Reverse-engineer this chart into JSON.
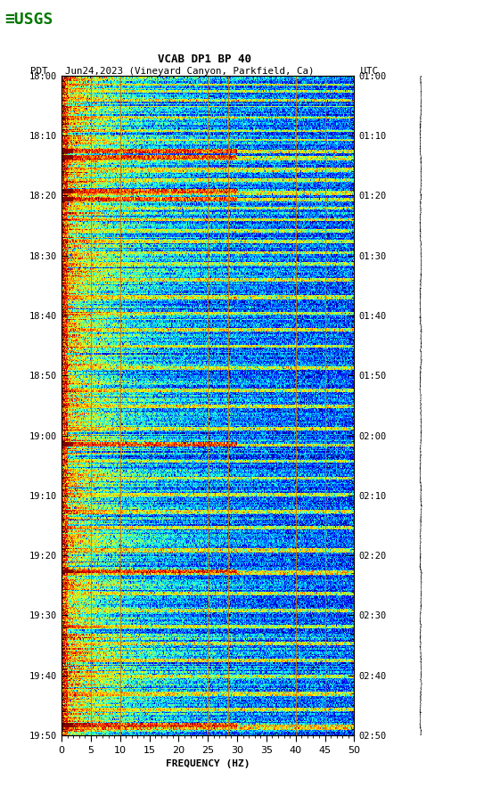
{
  "title_line1": "VCAB DP1 BP 40",
  "title_line2": "PDT   Jun24,2023 (Vineyard Canyon, Parkfield, Ca)        UTC",
  "xlabel": "FREQUENCY (HZ)",
  "freq_min": 0,
  "freq_max": 50,
  "left_yticks": [
    "18:00",
    "18:10",
    "18:20",
    "18:30",
    "18:40",
    "18:50",
    "19:00",
    "19:10",
    "19:20",
    "19:30",
    "19:40",
    "19:50"
  ],
  "right_yticks": [
    "01:00",
    "01:10",
    "01:20",
    "01:30",
    "01:40",
    "01:50",
    "02:00",
    "02:10",
    "02:20",
    "02:30",
    "02:40",
    "02:50"
  ],
  "xticks": [
    0,
    5,
    10,
    15,
    20,
    25,
    30,
    35,
    40,
    45,
    50
  ],
  "orange_vlines_freq": [
    5.0,
    10.0,
    25.0,
    28.5,
    40.0,
    45.0
  ],
  "background_color": "#ffffff",
  "spectrogram_cmap": "jet",
  "fig_width": 5.52,
  "fig_height": 8.92,
  "dpi": 100
}
